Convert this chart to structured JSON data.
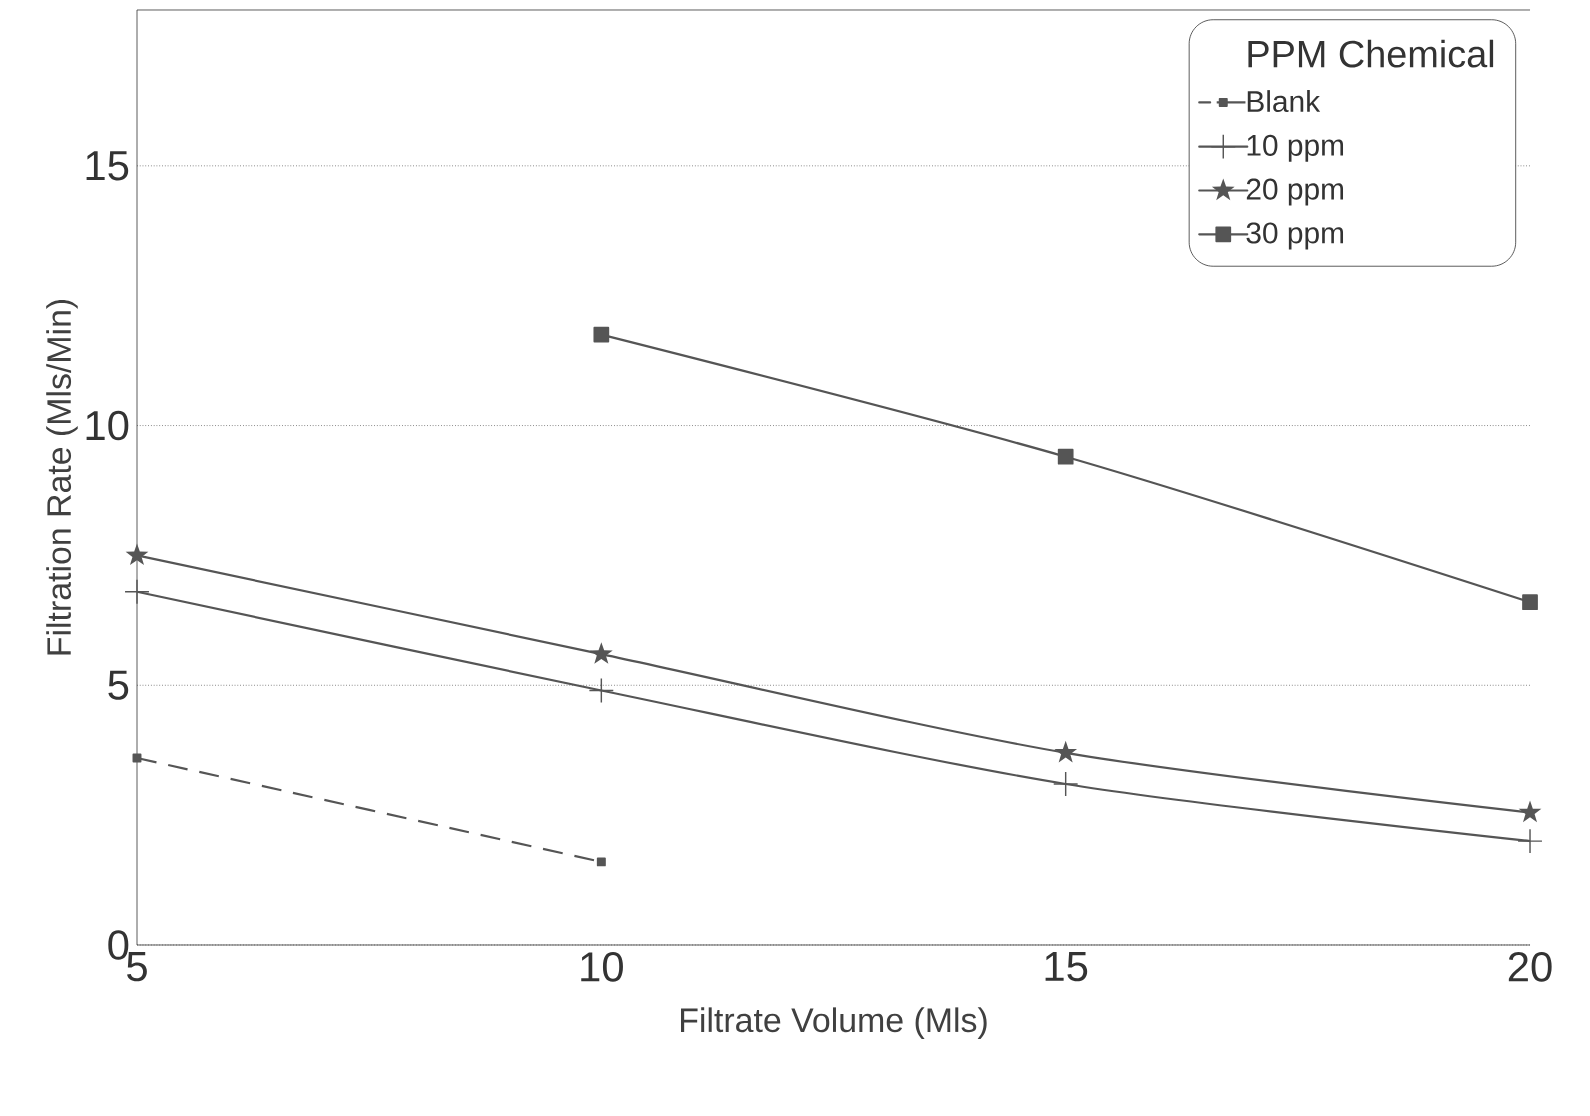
{
  "chart_data": {
    "type": "line",
    "xlabel": "Filtrate Volume (Mls)",
    "ylabel": "Filtration Rate (Mls/Min)",
    "legend_title": "PPM Chemical",
    "x": [
      5,
      10,
      15,
      20
    ],
    "xlim": [
      5,
      20
    ],
    "xticks": [
      5,
      10,
      15,
      20
    ],
    "ylim": [
      0,
      18
    ],
    "yticks": [
      0,
      5,
      10,
      15
    ],
    "grid": "y",
    "legend": "top right",
    "series": [
      {
        "name": "Blank",
        "color": "#555555",
        "values": [
          3.6,
          1.6,
          null,
          null
        ],
        "marker": "square",
        "line_style": "dashed"
      },
      {
        "name": "10 ppm",
        "color": "#555555",
        "values": [
          6.8,
          4.9,
          3.1,
          2.0
        ],
        "marker": "cross",
        "line_style": "solid"
      },
      {
        "name": "20 ppm",
        "color": "#555555",
        "values": [
          7.5,
          5.6,
          3.7,
          2.55
        ],
        "marker": "star",
        "line_style": "solid"
      },
      {
        "name": "30 ppm",
        "color": "#555555",
        "values": [
          null,
          11.75,
          9.4,
          6.6
        ],
        "marker": "square",
        "line_style": "solid"
      }
    ]
  }
}
